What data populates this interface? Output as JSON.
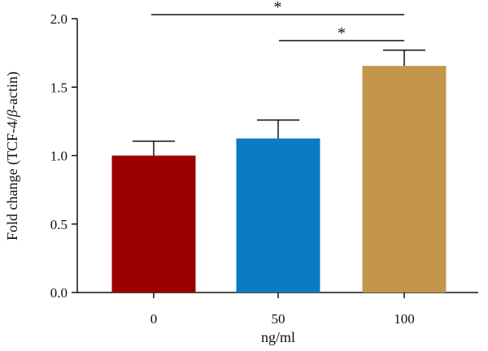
{
  "chart_data": {
    "type": "bar",
    "categories": [
      "0",
      "50",
      "100"
    ],
    "values": [
      1.0,
      1.125,
      1.655
    ],
    "errors": [
      0.105,
      0.135,
      0.115
    ],
    "colors": [
      "#9b0000",
      "#0a7cc4",
      "#c4954c"
    ],
    "xlabel": "ng/ml",
    "ylabel": {
      "prefix": "Fold change (TCF-4/",
      "italic": "β",
      "suffix": "-actin)"
    },
    "ylim": [
      0,
      2.0
    ],
    "yticks": [
      "0.0",
      "0.5",
      "1.0",
      "1.5",
      "2.0"
    ],
    "grid": false,
    "significance": [
      {
        "from": 0,
        "to": 2,
        "label": "*"
      },
      {
        "from": 1,
        "to": 2,
        "label": "*"
      }
    ]
  }
}
